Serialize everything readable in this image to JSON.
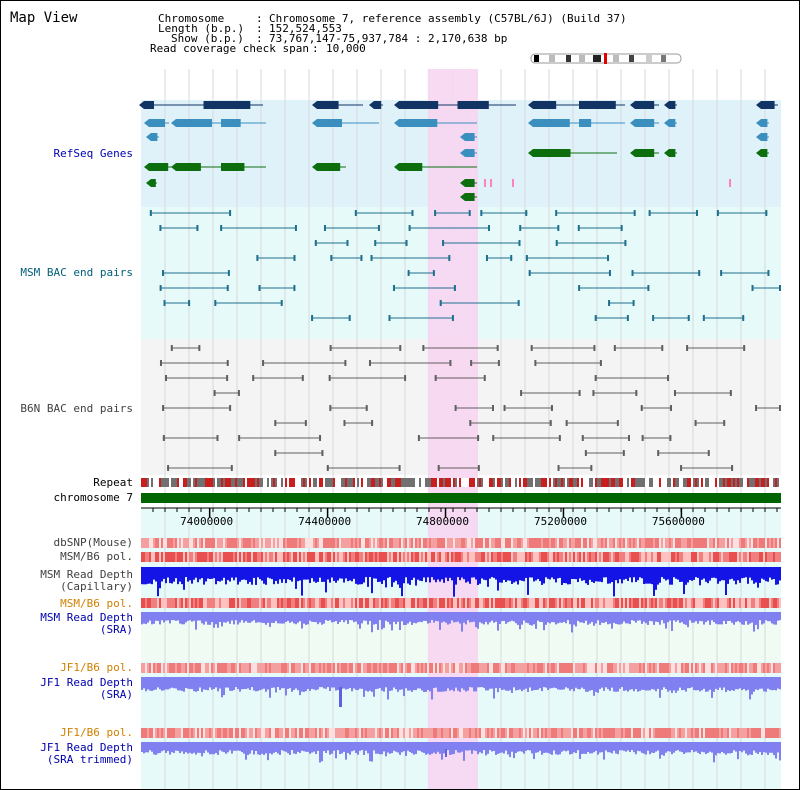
{
  "app": {
    "title": "Map View"
  },
  "header": {
    "chromosome_key": "Chromosome",
    "chromosome_val": "Chromosome 7, reference assembly (C57BL/6J) (Build 37)",
    "length_key": "Length (b.p.)",
    "length_val": "152,524,553",
    "show_key": "Show (b.p.)",
    "show_val": "73,767,147-75,937,784 : 2,170,638 bp",
    "coverage_key": "Read coverage check span",
    "coverage_val": "10,000"
  },
  "tracks": {
    "refseq": "RefSeq Genes",
    "msm_bac": "MSM BAC end pairs",
    "b6n_bac": "B6N BAC end pairs",
    "repeat": "Repeat",
    "chromosome": "chromosome 7",
    "dbsnp": "dbSNP(Mouse)",
    "msm_pol1": "MSM/B6 pol.",
    "msm_depth_cap_1": "MSM Read Depth",
    "msm_depth_cap_2": "(Capillary)",
    "msm_pol2": "MSM/B6 pol.",
    "msm_depth_sra_1": "MSM Read Depth",
    "msm_depth_sra_2": "(SRA)",
    "jf1_pol1": "JF1/B6 pol.",
    "jf1_depth_sra_1": "JF1 Read Depth",
    "jf1_depth_sra_2": "(SRA)",
    "jf1_pol2": "JF1/B6 pol.",
    "jf1_depth_trim_1": "JF1 Read Depth",
    "jf1_depth_trim_2": "(SRA trimmed)"
  },
  "axis": {
    "ticks": [
      "74000000",
      "74400000",
      "74800000",
      "75200000",
      "75600000"
    ],
    "tick_values": [
      74000000,
      74400000,
      74800000,
      75200000,
      75600000
    ],
    "range_start": 73767147,
    "range_end": 75937784
  },
  "highlight": {
    "start": 74740000,
    "end": 74910000
  },
  "colors": {
    "refseq_bg": "#dff2fa",
    "msm_bg": "#e6fafa",
    "b6n_bg": "#f4f4f4",
    "highlight": "#f7d6f2",
    "chromosome_bar": "#006400",
    "depth_blue": "#1414e6",
    "depth_light": "#8080f0"
  }
}
